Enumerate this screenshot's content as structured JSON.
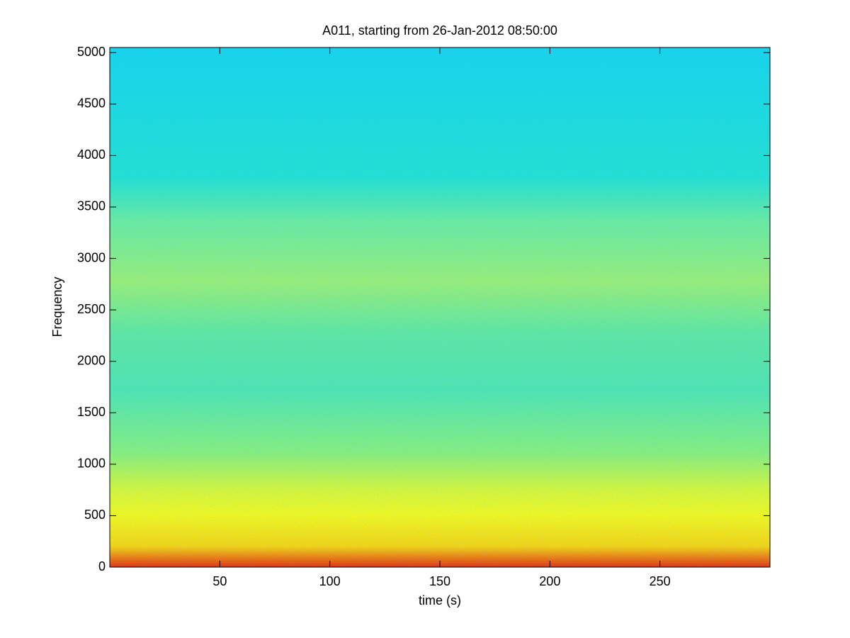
{
  "chart_data": {
    "type": "spectrogram",
    "title": "A011, starting from 26-Jan-2012 08:50:00",
    "x_label": "time (s)",
    "y_label": "Frequency",
    "xlim": [
      0,
      300
    ],
    "xticks": [
      50,
      100,
      150,
      200,
      250
    ],
    "ylim": [
      0,
      5050
    ],
    "yticks": [
      0,
      500,
      1000,
      1500,
      2000,
      2500,
      3000,
      3500,
      4000,
      4500,
      5000
    ]
  }
}
